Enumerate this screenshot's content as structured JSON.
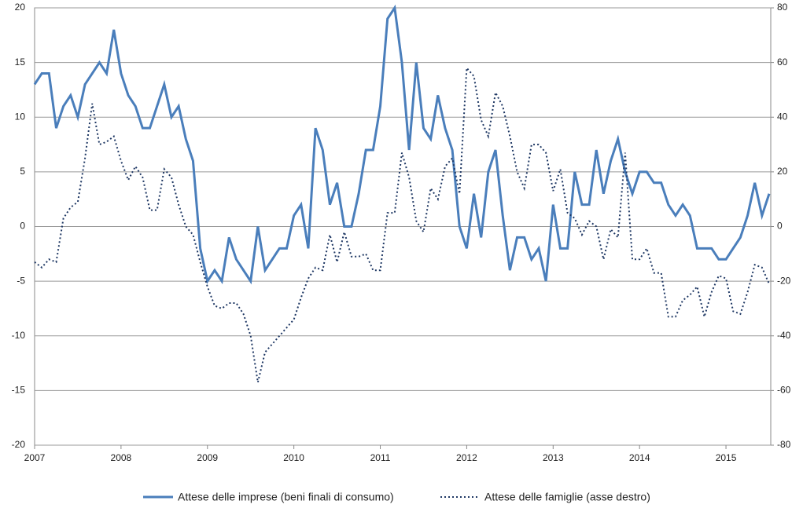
{
  "chart_data": {
    "type": "line",
    "categories": [
      "2007",
      null,
      null,
      null,
      null,
      null,
      null,
      null,
      null,
      null,
      null,
      null,
      "2008",
      null,
      null,
      null,
      null,
      null,
      null,
      null,
      null,
      null,
      null,
      null,
      "2009",
      null,
      null,
      null,
      null,
      null,
      null,
      null,
      null,
      null,
      null,
      null,
      "2010",
      null,
      null,
      null,
      null,
      null,
      null,
      null,
      null,
      null,
      null,
      null,
      "2011",
      null,
      null,
      null,
      null,
      null,
      null,
      null,
      null,
      null,
      null,
      null,
      "2012",
      null,
      null,
      null,
      null,
      null,
      null,
      null,
      null,
      null,
      null,
      null,
      "2013",
      null,
      null,
      null,
      null,
      null,
      null,
      null,
      null,
      null,
      null,
      null,
      "2014",
      null,
      null,
      null,
      null,
      null,
      null,
      null,
      null,
      null,
      null,
      null,
      "2015",
      null,
      null,
      null,
      null,
      null,
      null
    ],
    "series": [
      {
        "name": "Attese delle imprese (beni finali di consumo)",
        "color": "#4a7ebb",
        "style": "solid",
        "values": [
          13,
          14,
          14,
          9,
          11,
          12,
          10,
          13,
          14,
          15,
          14,
          18,
          14,
          12,
          11,
          9,
          9,
          11,
          13,
          10,
          11,
          8,
          6,
          -2,
          -5,
          -4,
          -5,
          -1,
          -3,
          -4,
          -5,
          0,
          -4,
          -3,
          -2,
          -2,
          1,
          2,
          -2,
          9,
          7,
          2,
          4,
          0,
          0,
          3,
          7,
          7,
          11,
          19,
          20,
          15,
          7,
          15,
          9,
          8,
          12,
          9,
          7,
          0,
          -2,
          3,
          -1,
          5,
          7,
          1,
          -4,
          -1,
          -1,
          -3,
          -2,
          -5,
          2,
          -2,
          -2,
          5,
          2,
          2,
          7,
          3,
          6,
          8,
          5,
          3,
          5,
          5,
          4,
          4,
          2,
          1,
          2,
          1,
          -2,
          -2,
          -2,
          -3,
          -3,
          -2,
          -1,
          1,
          4,
          1,
          3
        ]
      },
      {
        "name": "Attese delle famiglie (asse destro)",
        "color": "#1f3864",
        "style": "dotted",
        "axis": "y2",
        "values": [
          -13,
          -15,
          -12,
          -13,
          3,
          7,
          9,
          25,
          45,
          30,
          31,
          33,
          24,
          17,
          22,
          18,
          6,
          6,
          21,
          18,
          8,
          0,
          -3,
          -13,
          -22,
          -29,
          -30,
          -28,
          -28,
          -32,
          -40,
          -57,
          -46,
          -43,
          -40,
          -37,
          -34,
          -26,
          -19,
          -15,
          -16,
          -3,
          -13,
          -2,
          -11,
          -11,
          -10,
          -16,
          -16,
          5,
          5,
          27,
          18,
          2,
          -2,
          14,
          10,
          22,
          25,
          12,
          58,
          55,
          39,
          33,
          49,
          44,
          33,
          20,
          14,
          30,
          30,
          27,
          13,
          21,
          5,
          3,
          -3,
          2,
          0,
          -12,
          -1,
          -4,
          27,
          -12,
          -12,
          -8,
          -17,
          -17,
          -33,
          -33,
          -27,
          -25,
          -22,
          -33,
          -24,
          -18,
          -19,
          -31,
          -32,
          -24,
          -14,
          -15,
          -21
        ]
      }
    ],
    "ylim": [
      -20,
      20
    ],
    "yticks": [
      -20,
      -15,
      -10,
      -5,
      0,
      5,
      10,
      15,
      20
    ],
    "y2lim": [
      -80,
      80
    ],
    "y2ticks": [
      -80,
      -60,
      -40,
      -20,
      0,
      20,
      40,
      60,
      80
    ],
    "grid": true,
    "legend": "bottom"
  }
}
